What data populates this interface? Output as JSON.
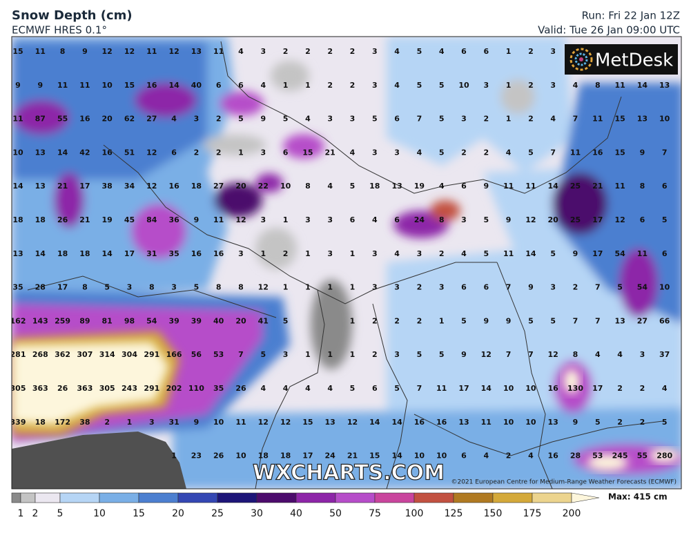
{
  "header": {
    "title": "Snow Depth (cm)",
    "model": "ECMWF HRES 0.1°",
    "run": "Run: Fri 22 Jan 12Z",
    "valid": "Valid: Tue 26 Jan 09:00 UTC"
  },
  "logo": "MetDesk",
  "watermark": "WXCHARTS.COM",
  "copyright": "©2021 European Centre for Medium-Range Weather Forecasts (ECMWF)",
  "grid": {
    "rows": [
      [
        15,
        11,
        8,
        9,
        12,
        12,
        11,
        12,
        13,
        11,
        4,
        3,
        2,
        2,
        2,
        2,
        3,
        4,
        5,
        4,
        6,
        6,
        1,
        2,
        3,
        null,
        null,
        null,
        null,
        null
      ],
      [
        9,
        9,
        11,
        11,
        10,
        15,
        16,
        14,
        40,
        6,
        6,
        4,
        1,
        1,
        2,
        2,
        3,
        4,
        5,
        5,
        10,
        3,
        1,
        2,
        3,
        4,
        8,
        11,
        14,
        13
      ],
      [
        11,
        87,
        55,
        16,
        20,
        62,
        27,
        4,
        3,
        2,
        5,
        9,
        5,
        4,
        3,
        3,
        5,
        6,
        7,
        5,
        3,
        2,
        1,
        2,
        4,
        7,
        11,
        15,
        13,
        10
      ],
      [
        10,
        13,
        14,
        42,
        16,
        51,
        12,
        6,
        2,
        2,
        1,
        3,
        6,
        15,
        21,
        4,
        3,
        3,
        4,
        5,
        2,
        2,
        4,
        5,
        7,
        11,
        16,
        15,
        9,
        7
      ],
      [
        14,
        13,
        21,
        17,
        38,
        34,
        12,
        16,
        18,
        27,
        20,
        22,
        10,
        8,
        4,
        5,
        18,
        13,
        19,
        4,
        6,
        9,
        11,
        11,
        14,
        25,
        21,
        11,
        8,
        6
      ],
      [
        18,
        18,
        26,
        21,
        19,
        45,
        84,
        36,
        9,
        11,
        12,
        3,
        1,
        3,
        3,
        6,
        4,
        6,
        24,
        8,
        3,
        5,
        9,
        12,
        20,
        25,
        17,
        12,
        6,
        5
      ],
      [
        13,
        14,
        18,
        18,
        14,
        17,
        31,
        35,
        16,
        16,
        3,
        1,
        2,
        1,
        3,
        1,
        3,
        4,
        3,
        2,
        4,
        5,
        11,
        14,
        5,
        9,
        17,
        54,
        11,
        6
      ],
      [
        35,
        28,
        17,
        8,
        5,
        3,
        8,
        3,
        5,
        8,
        8,
        12,
        1,
        1,
        1,
        1,
        3,
        3,
        2,
        3,
        6,
        6,
        7,
        9,
        3,
        2,
        7,
        5,
        54,
        10
      ],
      [
        162,
        143,
        259,
        89,
        81,
        98,
        54,
        39,
        39,
        40,
        20,
        41,
        5,
        null,
        null,
        1,
        2,
        2,
        2,
        1,
        5,
        9,
        9,
        5,
        5,
        7,
        7,
        13,
        27,
        66
      ],
      [
        281,
        268,
        362,
        307,
        314,
        304,
        291,
        166,
        56,
        53,
        7,
        5,
        3,
        1,
        1,
        1,
        2,
        3,
        5,
        5,
        9,
        12,
        7,
        7,
        12,
        8,
        4,
        4,
        3,
        37
      ],
      [
        305,
        363,
        26,
        363,
        305,
        243,
        291,
        202,
        110,
        35,
        26,
        4,
        4,
        4,
        4,
        5,
        6,
        5,
        7,
        11,
        17,
        14,
        10,
        10,
        16,
        130,
        17,
        2,
        2,
        4
      ],
      [
        339,
        18,
        172,
        38,
        2,
        1,
        3,
        31,
        9,
        10,
        11,
        12,
        12,
        15,
        13,
        12,
        14,
        14,
        16,
        16,
        13,
        11,
        10,
        10,
        13,
        9,
        5,
        2,
        2,
        5
      ],
      [
        null,
        null,
        null,
        null,
        null,
        null,
        null,
        1,
        23,
        26,
        10,
        18,
        18,
        17,
        24,
        21,
        15,
        14,
        10,
        10,
        6,
        4,
        2,
        4,
        16,
        28,
        53,
        245,
        55,
        280
      ]
    ]
  },
  "legend": {
    "ticks": [
      1,
      2,
      5,
      10,
      15,
      20,
      25,
      30,
      40,
      50,
      75,
      100,
      125,
      150,
      175,
      200
    ],
    "colors": [
      "#8a8a8a",
      "#c4c4c4",
      "#ebe7f0",
      "#b6d5f5",
      "#7aafe6",
      "#4c7fd0",
      "#3447b3",
      "#1d1578",
      "#4c0b6c",
      "#8d25a8",
      "#b64dc9",
      "#c9459d",
      "#c25141",
      "#b07a22",
      "#d4a93a",
      "#ecd48e",
      "#fdf6dc"
    ],
    "max": "Max: 415 cm"
  }
}
